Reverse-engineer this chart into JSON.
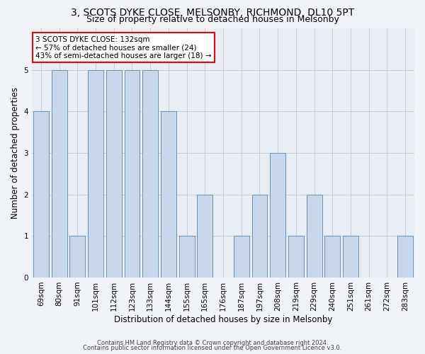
{
  "title1": "3, SCOTS DYKE CLOSE, MELSONBY, RICHMOND, DL10 5PT",
  "title2": "Size of property relative to detached houses in Melsonby",
  "xlabel": "Distribution of detached houses by size in Melsonby",
  "ylabel": "Number of detached properties",
  "footnote1": "Contains HM Land Registry data © Crown copyright and database right 2024.",
  "footnote2": "Contains public sector information licensed under the Open Government Licence v3.0.",
  "categories": [
    "69sqm",
    "80sqm",
    "91sqm",
    "101sqm",
    "112sqm",
    "123sqm",
    "133sqm",
    "144sqm",
    "155sqm",
    "165sqm",
    "176sqm",
    "187sqm",
    "197sqm",
    "208sqm",
    "219sqm",
    "229sqm",
    "240sqm",
    "251sqm",
    "261sqm",
    "272sqm",
    "283sqm"
  ],
  "values": [
    4,
    5,
    1,
    5,
    5,
    5,
    5,
    4,
    1,
    2,
    0,
    1,
    2,
    3,
    1,
    2,
    1,
    1,
    0,
    0,
    1
  ],
  "highlight_index": 6,
  "bar_color": "#c8d8ea",
  "bar_edge_color": "#5588aa",
  "annotation_box_text": "3 SCOTS DYKE CLOSE: 132sqm\n← 57% of detached houses are smaller (24)\n43% of semi-detached houses are larger (18) →",
  "annotation_box_color": "white",
  "annotation_box_edge_color": "red",
  "ylim": [
    0,
    6
  ],
  "yticks": [
    0,
    1,
    2,
    3,
    4,
    5,
    6
  ],
  "grid_color": "#cccccc",
  "background_color": "#f0f4f8",
  "plot_bg_color": "#e8eef4",
  "title_fontsize": 10,
  "subtitle_fontsize": 9,
  "axis_label_fontsize": 8.5,
  "tick_fontsize": 7.5,
  "annotation_fontsize": 7.5,
  "footnote_fontsize": 6
}
